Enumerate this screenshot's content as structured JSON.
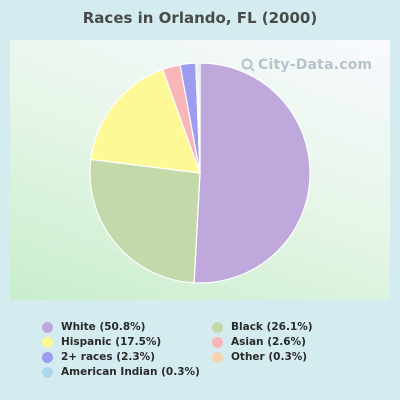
{
  "watermark": "City-Data.com",
  "chart_data": {
    "type": "pie",
    "title": "Races in Orlando, FL (2000)",
    "slices": [
      {
        "label": "White (50.8%)",
        "value": 50.8,
        "color": "#bfa8dc"
      },
      {
        "label": "Black (26.1%)",
        "value": 26.1,
        "color": "#c4d9a9"
      },
      {
        "label": "Hispanic (17.5%)",
        "value": 17.5,
        "color": "#fdf996"
      },
      {
        "label": "Asian (2.6%)",
        "value": 2.6,
        "color": "#f8b6b8"
      },
      {
        "label": "2+ races (2.3%)",
        "value": 2.3,
        "color": "#9c9cf0"
      },
      {
        "label": "Other (0.3%)",
        "value": 0.3,
        "color": "#f5d4ae"
      },
      {
        "label": "American Indian (0.3%)",
        "value": 0.3,
        "color": "#add8ec"
      }
    ],
    "legend_order": [
      0,
      1,
      2,
      3,
      4,
      5,
      6
    ],
    "legend_placement": "bottom"
  }
}
